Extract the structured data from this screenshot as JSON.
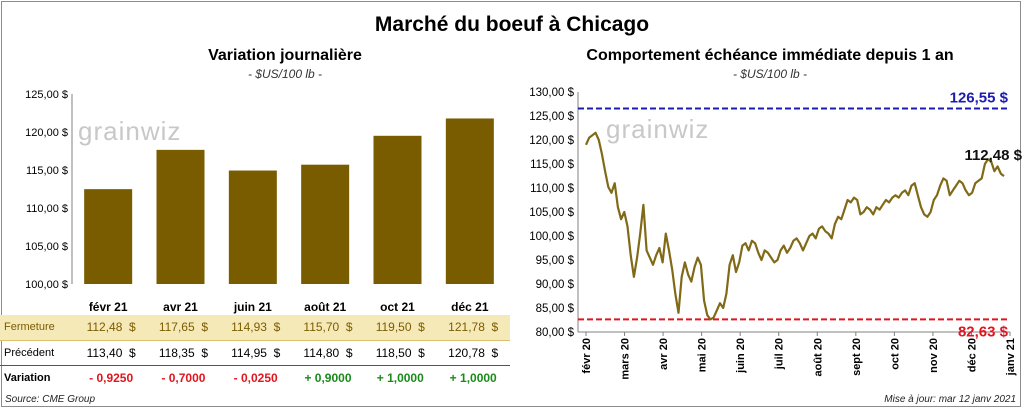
{
  "main_title": "Marché du boeuf à Chicago",
  "colors": {
    "bar": "#7a5c00",
    "line": "#806a17",
    "high": "#1c1cb0",
    "low": "#e0151f",
    "pos": "#1a8a1a",
    "neg": "#e0151f",
    "fermeture_bg": "#f6e9b8"
  },
  "left": {
    "title": "Variation  journalière",
    "subtitle": "- $US/100 lb -",
    "watermark": "grainwiz",
    "chart_data": {
      "type": "bar",
      "categories": [
        "févr 21",
        "avr 21",
        "juin 21",
        "août 21",
        "oct 21",
        "déc 21"
      ],
      "values": [
        112.48,
        117.65,
        114.93,
        115.7,
        119.5,
        121.78
      ],
      "ylim": [
        100,
        125
      ],
      "yticks": [
        "100,00 $",
        "105,00 $",
        "110,00 $",
        "115,00 $",
        "120,00 $",
        "125,00 $"
      ]
    },
    "table": {
      "rows": [
        {
          "label": "Fermeture",
          "cells": [
            "112,48  $",
            "117,65  $",
            "114,93  $",
            "115,70  $",
            "119,50  $",
            "121,78  $"
          ]
        },
        {
          "label": "Précédent",
          "cells": [
            "113,40  $",
            "118,35  $",
            "114,95  $",
            "114,80  $",
            "118,50  $",
            "120,78  $"
          ]
        },
        {
          "label": "Variation",
          "cells": [
            "- 0,9250",
            "- 0,7000",
            "- 0,0250",
            "+ 0,9000",
            "+ 1,0000",
            "+ 1,0000"
          ],
          "signs": [
            "neg",
            "neg",
            "neg",
            "pos",
            "pos",
            "pos"
          ]
        }
      ]
    },
    "source": "Source: CME Group"
  },
  "right": {
    "title": "Comportement  échéance immédiate depuis 1 an",
    "subtitle": "- $US/100 lb -",
    "watermark": "grainwiz",
    "high_label": "126,55 $",
    "low_label": "82,63 $",
    "last_label": "112,48 $",
    "chart_data": {
      "type": "line",
      "ylim": [
        80,
        130
      ],
      "yticks": [
        "80,00 $",
        "85,00 $",
        "90,00 $",
        "95,00 $",
        "100,00 $",
        "105,00 $",
        "110,00 $",
        "115,00 $",
        "120,00 $",
        "125,00 $",
        "130,00 $"
      ],
      "xticks": [
        "févr 20",
        "mars 20",
        "avr 20",
        "mai 20",
        "juin 20",
        "juil 20",
        "août 20",
        "sept 20",
        "oct 20",
        "nov 20",
        "déc 20",
        "janv 21"
      ],
      "high": 126.55,
      "low": 82.63,
      "series": [
        {
          "values": [
            119.0,
            120.5,
            121.0,
            121.5,
            120.0,
            117.0,
            113.5,
            110.2,
            109.0,
            111.0,
            106.0,
            103.5,
            105.0,
            102.0,
            96.0,
            91.5,
            95.5,
            100.5,
            106.5,
            97.0,
            95.5,
            94.0,
            96.0,
            97.5,
            94.5,
            100.5,
            97.0,
            93.0,
            88.0,
            84.0,
            91.5,
            94.5,
            92.0,
            90.5,
            93.5,
            95.5,
            94.0,
            86.5,
            83.5,
            82.63,
            83.0,
            84.5,
            86.0,
            85.0,
            88.0,
            94.0,
            96.0,
            92.5,
            94.5,
            98.0,
            98.5,
            97.0,
            99.0,
            98.5,
            96.5,
            95.0,
            97.0,
            96.5,
            95.5,
            94.5,
            95.0,
            97.0,
            98.0,
            96.5,
            97.5,
            99.0,
            99.5,
            98.5,
            97.0,
            98.5,
            100.0,
            100.5,
            99.5,
            101.5,
            102.0,
            101.0,
            100.5,
            99.5,
            102.5,
            104.0,
            103.5,
            105.5,
            107.5,
            107.0,
            108.0,
            107.5,
            104.5,
            105.0,
            106.0,
            105.5,
            104.5,
            106.0,
            105.5,
            106.5,
            107.5,
            107.0,
            108.0,
            108.5,
            108.0,
            109.0,
            109.5,
            108.5,
            110.5,
            111.0,
            108.5,
            106.0,
            104.5,
            104.0,
            105.0,
            107.5,
            108.5,
            110.5,
            112.0,
            111.5,
            108.5,
            109.5,
            110.5,
            111.5,
            111.0,
            109.5,
            108.5,
            109.0,
            111.0,
            111.5,
            112.0,
            115.0,
            116.0,
            115.5,
            113.5,
            114.5,
            113.0,
            112.48
          ]
        }
      ]
    }
  },
  "update": "Mise à jour: mar 12 janv 2021"
}
